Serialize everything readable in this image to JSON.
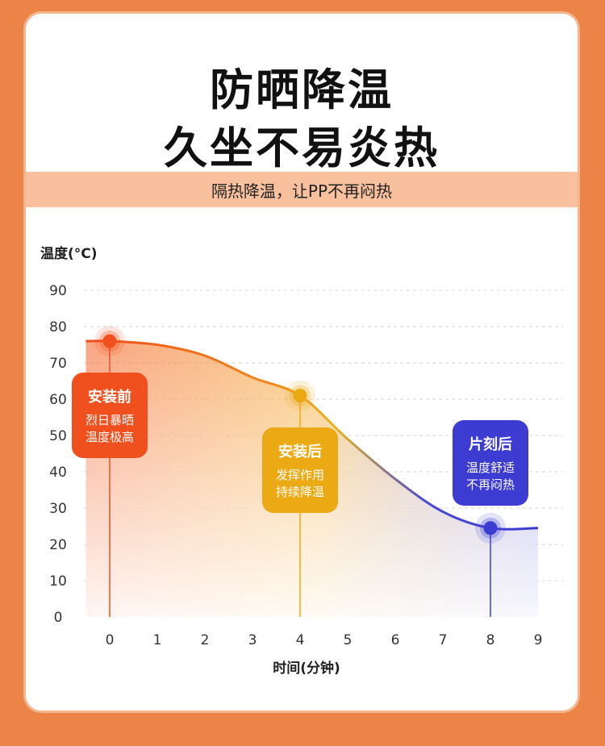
{
  "headline": {
    "line1": "防晒降温",
    "line2": "久坐不易炎热"
  },
  "subtitle": "隔热降温，让PP不再闷热",
  "chart_data": {
    "type": "area",
    "ylabel": "温度(°C)",
    "xlabel": "时间(分钟)",
    "xlim": [
      0,
      9
    ],
    "ylim": [
      0,
      90
    ],
    "x_ticks": [
      "0",
      "1",
      "2",
      "3",
      "4",
      "5",
      "6",
      "7",
      "8",
      "9"
    ],
    "y_ticks": [
      "0",
      "10",
      "20",
      "30",
      "40",
      "50",
      "60",
      "70",
      "80",
      "90"
    ],
    "grid": true,
    "series": [
      {
        "x": [
          -0.5,
          0,
          1,
          2,
          3,
          4,
          5,
          6,
          7,
          8,
          9
        ],
        "y": [
          76,
          76,
          75,
          72,
          66,
          61,
          49,
          38,
          29,
          24.5,
          24.5
        ]
      }
    ],
    "markers": [
      {
        "x": 0,
        "y": 76,
        "color": "#f0501e",
        "title": "安装前",
        "lines": [
          "烈日暴晒",
          "温度极高"
        ]
      },
      {
        "x": 4,
        "y": 61,
        "color": "#ebaa14",
        "title": "安装后",
        "lines": [
          "发挥作用",
          "持续降温"
        ]
      },
      {
        "x": 8,
        "y": 24.5,
        "color": "#3c3cd2",
        "title": "片刻后",
        "lines": [
          "温度舒适",
          "不再闷热"
        ]
      }
    ]
  }
}
